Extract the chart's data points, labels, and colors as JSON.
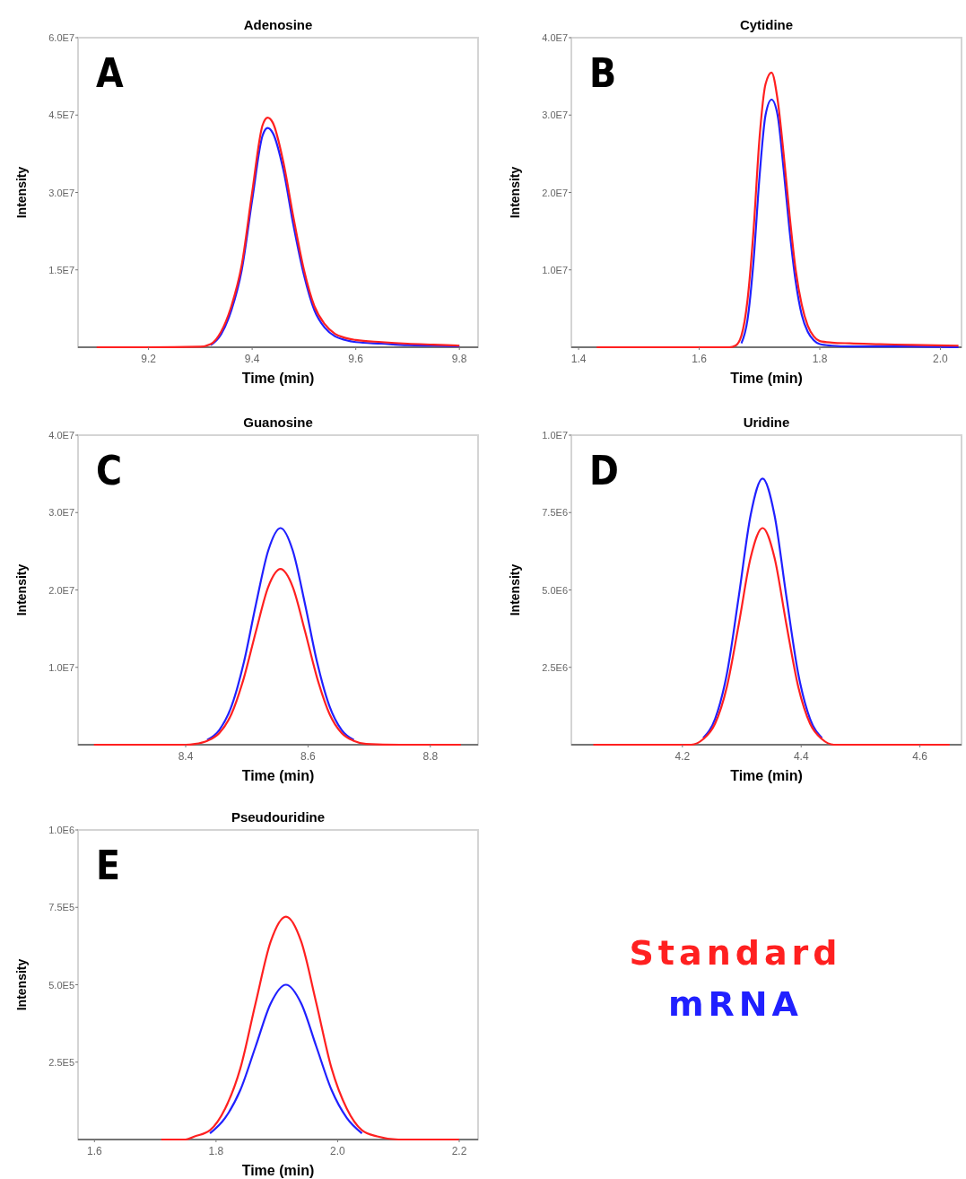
{
  "chart_data": [
    {
      "type": "line",
      "title": "Adenosine",
      "xlabel": "Time (min)",
      "ylabel": "Intensity",
      "annotations": [
        "A"
      ],
      "xlim": [
        9.064,
        9.836
      ],
      "xticks": [
        9.2,
        9.4,
        9.6,
        9.8
      ],
      "ylim": [
        0,
        60000000
      ],
      "yticks": [
        {
          "value": 15000000,
          "label": "1.5E7"
        },
        {
          "value": 30000000,
          "label": "3.0E7"
        },
        {
          "value": 45000000,
          "label": "4.5E7"
        },
        {
          "value": 60000000,
          "label": "6.0E7"
        }
      ],
      "grid": false,
      "legend": false,
      "marker": "none",
      "line_style": "solid",
      "x": [
        9.1,
        9.2,
        9.3,
        9.32,
        9.34,
        9.36,
        9.38,
        9.4,
        9.42,
        9.43,
        9.44,
        9.46,
        9.48,
        9.5,
        9.52,
        9.54,
        9.56,
        9.58,
        9.6,
        9.65,
        9.7,
        9.75,
        9.8
      ],
      "series": [
        {
          "color": "#2020ff",
          "values": [
            null,
            null,
            null,
            400000,
            2500000,
            7200000,
            15000000,
            28500000,
            41000000,
            42500000,
            41500000,
            34500000,
            23500000,
            14000000,
            7200000,
            3800000,
            2100000,
            1400000,
            1000000,
            700000,
            400000,
            300000,
            200000
          ]
        },
        {
          "color": "#ff2020",
          "values": [
            0,
            0,
            100000,
            600000,
            3000000,
            8000000,
            16000000,
            30000000,
            43000000,
            44500000,
            43500000,
            36000000,
            25000000,
            15000000,
            8000000,
            4500000,
            2600000,
            1800000,
            1400000,
            1000000,
            700000,
            500000,
            300000
          ]
        }
      ]
    },
    {
      "type": "line",
      "title": "Cytidine",
      "xlabel": "Time (min)",
      "ylabel": "Intensity",
      "annotations": [
        "B"
      ],
      "xlim": [
        1.388,
        2.035
      ],
      "xticks": [
        1.4,
        1.6,
        1.8,
        {
          "value": 2,
          "label": "2.0"
        }
      ],
      "ylim": [
        0,
        40000000
      ],
      "yticks": [
        {
          "value": 10000000,
          "label": "1.0E7"
        },
        {
          "value": 20000000,
          "label": "2.0E7"
        },
        {
          "value": 30000000,
          "label": "3.0E7"
        },
        {
          "value": 40000000,
          "label": "4.0E7"
        }
      ],
      "grid": false,
      "legend": false,
      "marker": "none",
      "line_style": "solid",
      "x": [
        1.43,
        1.5,
        1.6,
        1.65,
        1.66,
        1.67,
        1.68,
        1.69,
        1.7,
        1.71,
        1.72,
        1.73,
        1.74,
        1.75,
        1.76,
        1.77,
        1.78,
        1.79,
        1.8,
        1.82,
        1.85,
        1.9,
        1.95,
        2.03
      ],
      "series": [
        {
          "color": "#2020ff",
          "values": [
            null,
            null,
            null,
            null,
            null,
            500000,
            3500000,
            11000000,
            22000000,
            30000000,
            32000000,
            30000000,
            23000000,
            15000000,
            8500000,
            4200000,
            2000000,
            900000,
            400000,
            200000,
            100000,
            100000,
            100000,
            0
          ]
        },
        {
          "color": "#ff2020",
          "values": [
            0,
            0,
            0,
            0,
            200000,
            1500000,
            6000000,
            15000000,
            27000000,
            34000000,
            35500000,
            32000000,
            25000000,
            17000000,
            10000000,
            5500000,
            2800000,
            1400000,
            800000,
            600000,
            500000,
            400000,
            300000,
            200000
          ]
        }
      ]
    },
    {
      "type": "line",
      "title": "Guanosine",
      "xlabel": "Time (min)",
      "ylabel": "Intensity",
      "annotations": [
        "C"
      ],
      "xlim": [
        8.224,
        8.878
      ],
      "xticks": [
        8.4,
        8.6,
        8.8
      ],
      "ylim": [
        0,
        40000000
      ],
      "yticks": [
        {
          "value": 10000000,
          "label": "1.0E7"
        },
        {
          "value": 20000000,
          "label": "2.0E7"
        },
        {
          "value": 30000000,
          "label": "3.0E7"
        },
        {
          "value": 40000000,
          "label": "4.0E7"
        }
      ],
      "grid": false,
      "legend": false,
      "marker": "none",
      "line_style": "solid",
      "x": [
        8.25,
        8.3,
        8.35,
        8.4,
        8.415,
        8.435,
        8.455,
        8.475,
        8.495,
        8.515,
        8.535,
        8.555,
        8.575,
        8.595,
        8.615,
        8.635,
        8.655,
        8.675,
        8.695,
        8.75,
        8.8,
        8.85
      ],
      "series": [
        {
          "color": "#2020ff",
          "values": [
            null,
            null,
            null,
            null,
            null,
            600000,
            1900000,
            5000000,
            10600000,
            18200000,
            25100000,
            28000000,
            25100000,
            18200000,
            10600000,
            5000000,
            1900000,
            600000,
            null,
            null,
            null,
            null
          ]
        },
        {
          "color": "#ff2020",
          "values": [
            0,
            0,
            0,
            0,
            100000,
            500000,
            1500000,
            4000000,
            8600000,
            14700000,
            20400000,
            22700000,
            20400000,
            14700000,
            8600000,
            4000000,
            1500000,
            500000,
            100000,
            0,
            0,
            0
          ]
        }
      ]
    },
    {
      "type": "line",
      "title": "Uridine",
      "xlabel": "Time (min)",
      "ylabel": "Intensity",
      "annotations": [
        "D"
      ],
      "xlim": [
        4.013,
        4.67
      ],
      "xticks": [
        4.2,
        4.4,
        4.6
      ],
      "ylim": [
        0,
        10000000
      ],
      "yticks": [
        {
          "value": 2500000,
          "label": "2.5E6"
        },
        {
          "value": 5000000,
          "label": "5.0E6"
        },
        {
          "value": 7500000,
          "label": "7.5E6"
        },
        {
          "value": 10000000,
          "label": "1.0E7"
        }
      ],
      "grid": false,
      "legend": false,
      "marker": "none",
      "line_style": "solid",
      "x": [
        4.05,
        4.1,
        4.15,
        4.2,
        4.215,
        4.235,
        4.255,
        4.275,
        4.295,
        4.315,
        4.335,
        4.355,
        4.375,
        4.395,
        4.415,
        4.435,
        4.455,
        4.5,
        4.55,
        4.6,
        4.65
      ],
      "series": [
        {
          "color": "#2020ff",
          "values": [
            null,
            null,
            null,
            null,
            null,
            220000,
            830000,
            2300000,
            4800000,
            7430000,
            8600000,
            7430000,
            4800000,
            2300000,
            830000,
            220000,
            null,
            null,
            null,
            null,
            null
          ]
        },
        {
          "color": "#ff2020",
          "values": [
            0,
            0,
            0,
            0,
            0,
            180000,
            680000,
            1880000,
            3900000,
            6050000,
            7000000,
            6050000,
            3900000,
            1880000,
            680000,
            180000,
            0,
            0,
            0,
            0,
            0
          ]
        }
      ]
    },
    {
      "type": "line",
      "title": "Pseudouridine",
      "xlabel": "Time (min)",
      "ylabel": "Intensity",
      "annotations": [
        "E"
      ],
      "xlim": [
        1.573,
        2.231
      ],
      "xticks": [
        1.6,
        1.8,
        {
          "value": 2,
          "label": "2.0"
        },
        2.2
      ],
      "ylim": [
        0,
        1000000
      ],
      "yticks": [
        {
          "value": 250000,
          "label": "2.5E5"
        },
        {
          "value": 500000,
          "label": "5.0E5"
        },
        {
          "value": 750000,
          "label": "7.5E5"
        },
        {
          "value": 1000000,
          "label": "1.0E6"
        }
      ],
      "grid": false,
      "legend": "right",
      "marker": "none",
      "line_style": "solid",
      "x": [
        1.71,
        1.75,
        1.765,
        1.79,
        1.815,
        1.84,
        1.865,
        1.89,
        1.915,
        1.94,
        1.965,
        1.99,
        2.015,
        2.04,
        2.065,
        2.1,
        2.15,
        2.2
      ],
      "series": [
        {
          "name": "mRNA",
          "color": "#2020ff",
          "values": [
            null,
            null,
            null,
            20000,
            70000,
            160000,
            300000,
            440000,
            500000,
            440000,
            300000,
            160000,
            70000,
            20000,
            null,
            null,
            null,
            null
          ]
        },
        {
          "name": "Standard",
          "color": "#ff2020",
          "values": [
            0,
            0,
            10000,
            30000,
            100000,
            230000,
            440000,
            640000,
            720000,
            640000,
            440000,
            230000,
            100000,
            30000,
            10000,
            0,
            0,
            0
          ]
        }
      ]
    }
  ]
}
